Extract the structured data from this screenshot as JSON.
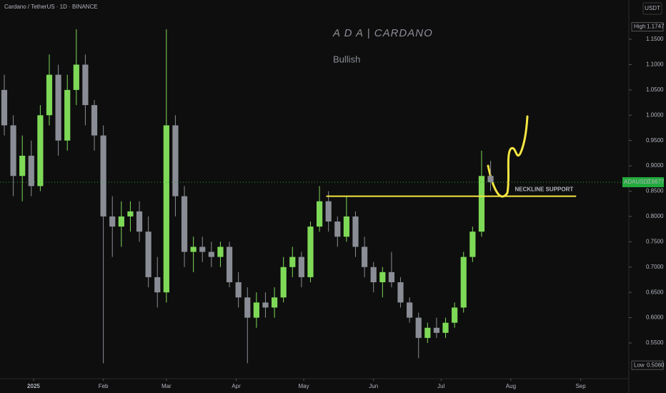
{
  "chart_data": {
    "type": "candlestick",
    "header": "Cardano / TetherUS · 1D · BINANCE",
    "title": "A D A  |  CARDANO",
    "subtitle": "Bullish",
    "currency": "USDT",
    "up_color": "#7ed957",
    "down_color": "#8a8d95",
    "x": [
      -15,
      -11,
      -7,
      -3,
      1,
      5,
      9,
      13,
      17,
      21,
      25,
      29,
      33,
      37,
      41,
      45,
      49,
      53,
      57,
      61,
      65,
      69,
      73,
      77,
      81,
      85,
      89,
      93,
      97,
      101,
      105,
      109,
      113,
      117,
      121,
      125,
      129,
      133,
      137,
      141,
      145,
      149,
      153,
      157,
      161,
      165,
      169,
      173,
      177,
      181,
      185,
      189,
      193,
      197,
      201
    ],
    "open": [
      1.05,
      0.98,
      0.88,
      0.92,
      0.86,
      1.0,
      1.08,
      0.95,
      1.05,
      1.1,
      1.02,
      0.96,
      0.8,
      0.78,
      0.8,
      0.81,
      0.77,
      0.68,
      0.65,
      0.98,
      0.84,
      0.73,
      0.74,
      0.73,
      0.72,
      0.74,
      0.67,
      0.64,
      0.6,
      0.63,
      0.62,
      0.64,
      0.7,
      0.72,
      0.68,
      0.78,
      0.83,
      0.79,
      0.76,
      0.8,
      0.74,
      0.7,
      0.67,
      0.69,
      0.67,
      0.63,
      0.6,
      0.56,
      0.58,
      0.57,
      0.59,
      0.62,
      0.72,
      0.77,
      0.88
    ],
    "high": [
      1.08,
      1.0,
      0.96,
      0.95,
      1.02,
      1.12,
      1.1,
      1.08,
      1.17,
      1.12,
      1.03,
      0.98,
      0.84,
      0.83,
      0.83,
      0.83,
      0.8,
      0.72,
      1.17,
      1.0,
      0.86,
      0.76,
      0.76,
      0.75,
      0.75,
      0.75,
      0.69,
      0.66,
      0.65,
      0.65,
      0.66,
      0.72,
      0.74,
      0.73,
      0.79,
      0.86,
      0.85,
      0.8,
      0.84,
      0.81,
      0.76,
      0.71,
      0.7,
      0.73,
      0.68,
      0.64,
      0.61,
      0.59,
      0.6,
      0.6,
      0.63,
      0.73,
      0.78,
      0.93,
      0.91
    ],
    "low": [
      0.96,
      0.84,
      0.83,
      0.84,
      0.85,
      0.98,
      0.92,
      0.93,
      1.02,
      0.98,
      0.93,
      0.51,
      0.72,
      0.74,
      0.77,
      0.75,
      0.66,
      0.62,
      0.63,
      0.8,
      0.7,
      0.69,
      0.71,
      0.7,
      0.7,
      0.66,
      0.62,
      0.51,
      0.58,
      0.6,
      0.6,
      0.63,
      0.68,
      0.66,
      0.67,
      0.77,
      0.77,
      0.74,
      0.75,
      0.72,
      0.68,
      0.65,
      0.64,
      0.66,
      0.62,
      0.59,
      0.52,
      0.55,
      0.56,
      0.56,
      0.58,
      0.61,
      0.71,
      0.76,
      0.85
    ],
    "close": [
      0.98,
      0.88,
      0.92,
      0.86,
      1.0,
      1.08,
      0.95,
      1.05,
      1.1,
      1.02,
      0.96,
      0.8,
      0.78,
      0.8,
      0.81,
      0.77,
      0.68,
      0.65,
      0.98,
      0.84,
      0.73,
      0.74,
      0.73,
      0.72,
      0.74,
      0.67,
      0.64,
      0.6,
      0.63,
      0.62,
      0.64,
      0.7,
      0.72,
      0.68,
      0.78,
      0.83,
      0.79,
      0.76,
      0.8,
      0.74,
      0.7,
      0.67,
      0.69,
      0.67,
      0.63,
      0.6,
      0.56,
      0.58,
      0.57,
      0.59,
      0.62,
      0.72,
      0.77,
      0.88,
      0.8677
    ],
    "xlim": [
      -14.9,
      264.4
    ],
    "xticks": [
      {
        "value": 0,
        "label": "2025"
      },
      {
        "value": 31,
        "label": "Feb"
      },
      {
        "value": 59,
        "label": "Mar"
      },
      {
        "value": 90,
        "label": "Apr"
      },
      {
        "value": 120,
        "label": "May"
      },
      {
        "value": 151,
        "label": "Jun"
      },
      {
        "value": 181,
        "label": "Jul"
      },
      {
        "value": 212,
        "label": "Aug"
      },
      {
        "value": 243,
        "label": "Sep"
      }
    ],
    "ylim": [
      0.4794,
      1.2277
    ],
    "yticks": [
      {
        "value": 0.55,
        "label": "0.5500"
      },
      {
        "value": 0.6,
        "label": "0.6000"
      },
      {
        "value": 0.65,
        "label": "0.6500"
      },
      {
        "value": 0.7,
        "label": "0.7000"
      },
      {
        "value": 0.75,
        "label": "0.7500"
      },
      {
        "value": 0.8,
        "label": "0.8000"
      },
      {
        "value": 0.85,
        "label": "0.8500"
      },
      {
        "value": 0.9,
        "label": "0.9000"
      },
      {
        "value": 0.95,
        "label": "0.9500"
      },
      {
        "value": 1,
        "label": "1.0000"
      },
      {
        "value": 1.05,
        "label": "1.0500"
      },
      {
        "value": 1.1,
        "label": "1.1000"
      },
      {
        "value": 1.15,
        "label": "1.1500"
      }
    ],
    "high_marker": {
      "label": "High",
      "value": 1.1747
    },
    "low_marker": {
      "label": "Low",
      "value": {
        "value": 0.506,
        "label": "0.5060"
      }
    },
    "last_price": {
      "label": "ADAUSDT",
      "value": 0.8677,
      "color": "#22ab3d"
    },
    "neckline": {
      "label": "NECKLINE SUPPORT",
      "value": 0.84,
      "start": 130,
      "end": 241,
      "color": "#f5e642"
    }
  }
}
